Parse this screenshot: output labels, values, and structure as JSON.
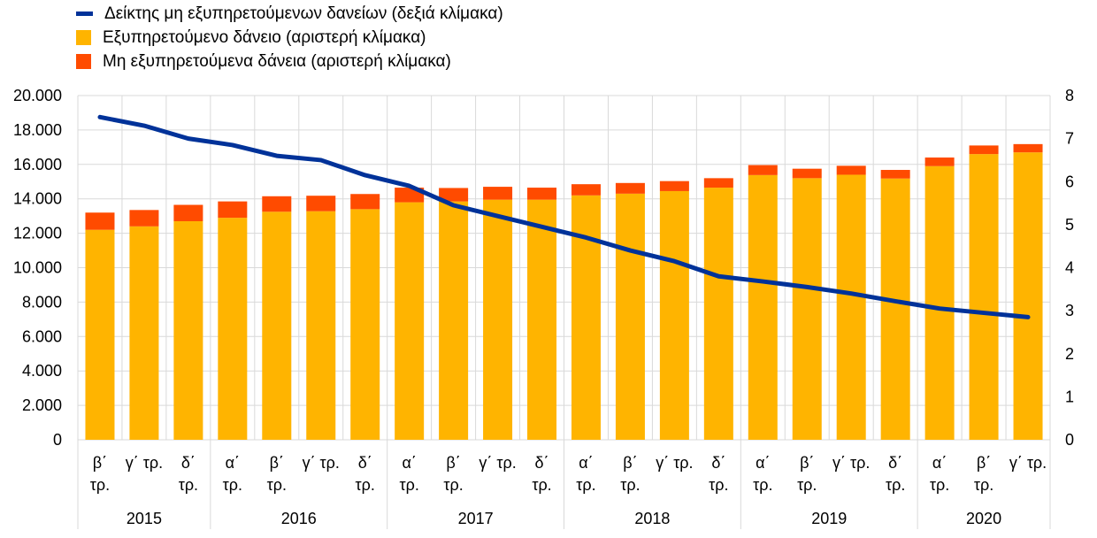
{
  "colors": {
    "npl_ratio": "#003299",
    "performing": "#FFB400",
    "non_performing": "#FF4B00",
    "grid": "#D9D9D9"
  },
  "legend": [
    {
      "label": "Δείκτης μη εξυπηρετούμενων δανείων (δεξιά κλίμακα)",
      "type": "line",
      "color": "#003299"
    },
    {
      "label": "Εξυπηρετούμενο δάνειο (αριστερή κλίμακα)",
      "type": "box",
      "color": "#FFB400"
    },
    {
      "label": "Μη εξυπηρετούμενα δάνεια (αριστερή κλίμακα)",
      "type": "box",
      "color": "#FF4B00"
    }
  ],
  "chart_data": {
    "type": "bar",
    "stacked": true,
    "categories": [
      [
        "β΄",
        "τρ."
      ],
      [
        "γ΄ τρ."
      ],
      [
        "δ΄",
        "τρ."
      ],
      [
        "α΄",
        "τρ."
      ],
      [
        "β΄",
        "τρ."
      ],
      [
        "γ΄ τρ."
      ],
      [
        "δ΄",
        "τρ."
      ],
      [
        "α΄",
        "τρ."
      ],
      [
        "β΄",
        "τρ."
      ],
      [
        "γ΄ τρ."
      ],
      [
        "δ΄",
        "τρ."
      ],
      [
        "α΄",
        "τρ."
      ],
      [
        "β΄",
        "τρ."
      ],
      [
        "γ΄ τρ."
      ],
      [
        "δ΄",
        "τρ."
      ],
      [
        "α΄",
        "τρ."
      ],
      [
        "β΄",
        "τρ."
      ],
      [
        "γ΄ τρ."
      ],
      [
        "δ΄",
        "τρ."
      ],
      [
        "α΄",
        "τρ."
      ],
      [
        "β΄",
        "τρ."
      ],
      [
        "γ΄ τρ."
      ]
    ],
    "year_groups": [
      {
        "label": "2015",
        "count": 3
      },
      {
        "label": "2016",
        "count": 4
      },
      {
        "label": "2017",
        "count": 4
      },
      {
        "label": "2018",
        "count": 4
      },
      {
        "label": "2019",
        "count": 4
      },
      {
        "label": "2020",
        "count": 3
      }
    ],
    "series": [
      {
        "name": "Εξυπηρετούμενο δάνειο (αριστερή κλίμακα)",
        "axis": "left",
        "kind": "bar",
        "values": [
          12200,
          12400,
          12700,
          12900,
          13250,
          13280,
          13400,
          13800,
          13850,
          13950,
          13950,
          14200,
          14300,
          14450,
          14650,
          15380,
          15200,
          15400,
          15180,
          15900,
          16600,
          16700
        ]
      },
      {
        "name": "Μη εξυπηρετούμενα δάνεια (αριστερή κλίμακα)",
        "axis": "left",
        "kind": "bar",
        "values": [
          1000,
          950,
          950,
          950,
          900,
          900,
          880,
          850,
          780,
          750,
          700,
          650,
          620,
          580,
          550,
          580,
          550,
          520,
          500,
          500,
          500,
          480
        ]
      },
      {
        "name": "Δείκτης μη εξυπηρετούμενων δανείων (δεξιά κλίμακα)",
        "axis": "right",
        "kind": "line",
        "values": [
          7.5,
          7.3,
          7.0,
          6.85,
          6.6,
          6.5,
          6.15,
          5.9,
          5.45,
          5.2,
          4.95,
          4.7,
          4.4,
          4.15,
          3.8,
          3.68,
          3.55,
          3.4,
          3.22,
          3.05,
          2.95,
          2.85
        ]
      }
    ],
    "y_left": {
      "min": 0,
      "max": 20000,
      "ticks": [
        "0",
        "2.000",
        "4.000",
        "6.000",
        "8.000",
        "10.000",
        "12.000",
        "14.000",
        "16.000",
        "18.000",
        "20.000"
      ]
    },
    "y_right": {
      "min": 0,
      "max": 8,
      "ticks": [
        "0",
        "1",
        "2",
        "3",
        "4",
        "5",
        "6",
        "7",
        "8"
      ]
    },
    "grid": true,
    "legend_position": "top-left"
  }
}
